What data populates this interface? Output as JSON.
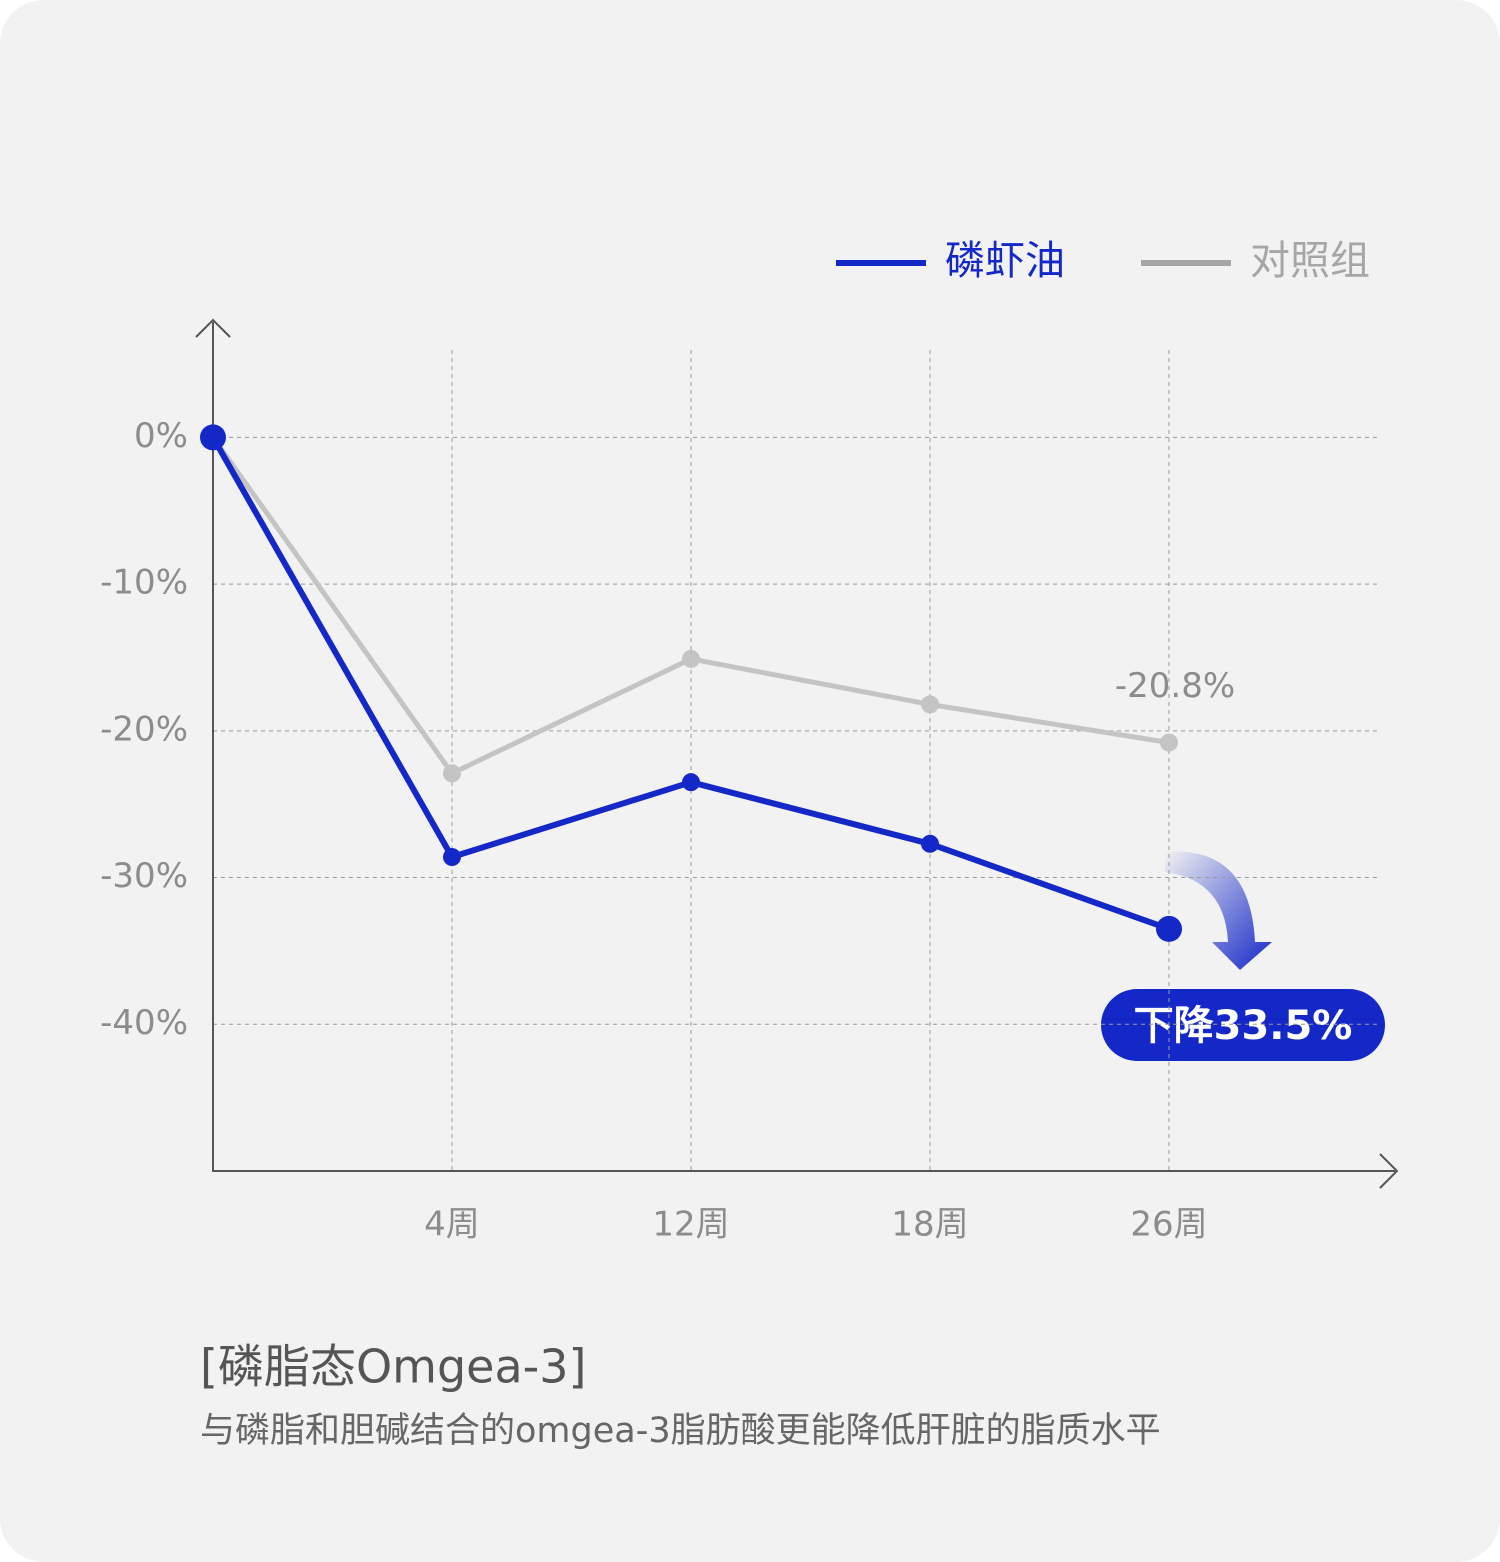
{
  "chart_data": {
    "type": "line",
    "title": "[磷脂态Omgea-3]",
    "subtitle": "与磷脂和胆碱结合的omgea-3脂肪酸更能降低肝脏的脂质水平",
    "annotation": "下降33.5%",
    "categories": [
      null,
      "4周",
      "12周",
      "18周",
      "26周"
    ],
    "series": [
      {
        "name": "磷虾油",
        "color": "#1428c8",
        "values": [
          0,
          -28.6,
          -23.5,
          -27.7,
          -33.5
        ]
      },
      {
        "name": "对照组",
        "color": "#c4c4c4",
        "legend_color": "#a6a6a6",
        "values": [
          0,
          -22.9,
          -15.1,
          -18.2,
          -20.8
        ],
        "value_labels": [
          null,
          null,
          null,
          null,
          "-20.8%"
        ]
      }
    ],
    "ylim": [
      -50,
      8
    ],
    "yticks": [
      {
        "value": 0,
        "label": "0%"
      },
      {
        "value": -10,
        "label": "-10%"
      },
      {
        "value": -20,
        "label": "-20%"
      },
      {
        "value": -30,
        "label": "-30%"
      },
      {
        "value": -40,
        "label": "-40%"
      }
    ],
    "grid": true
  }
}
